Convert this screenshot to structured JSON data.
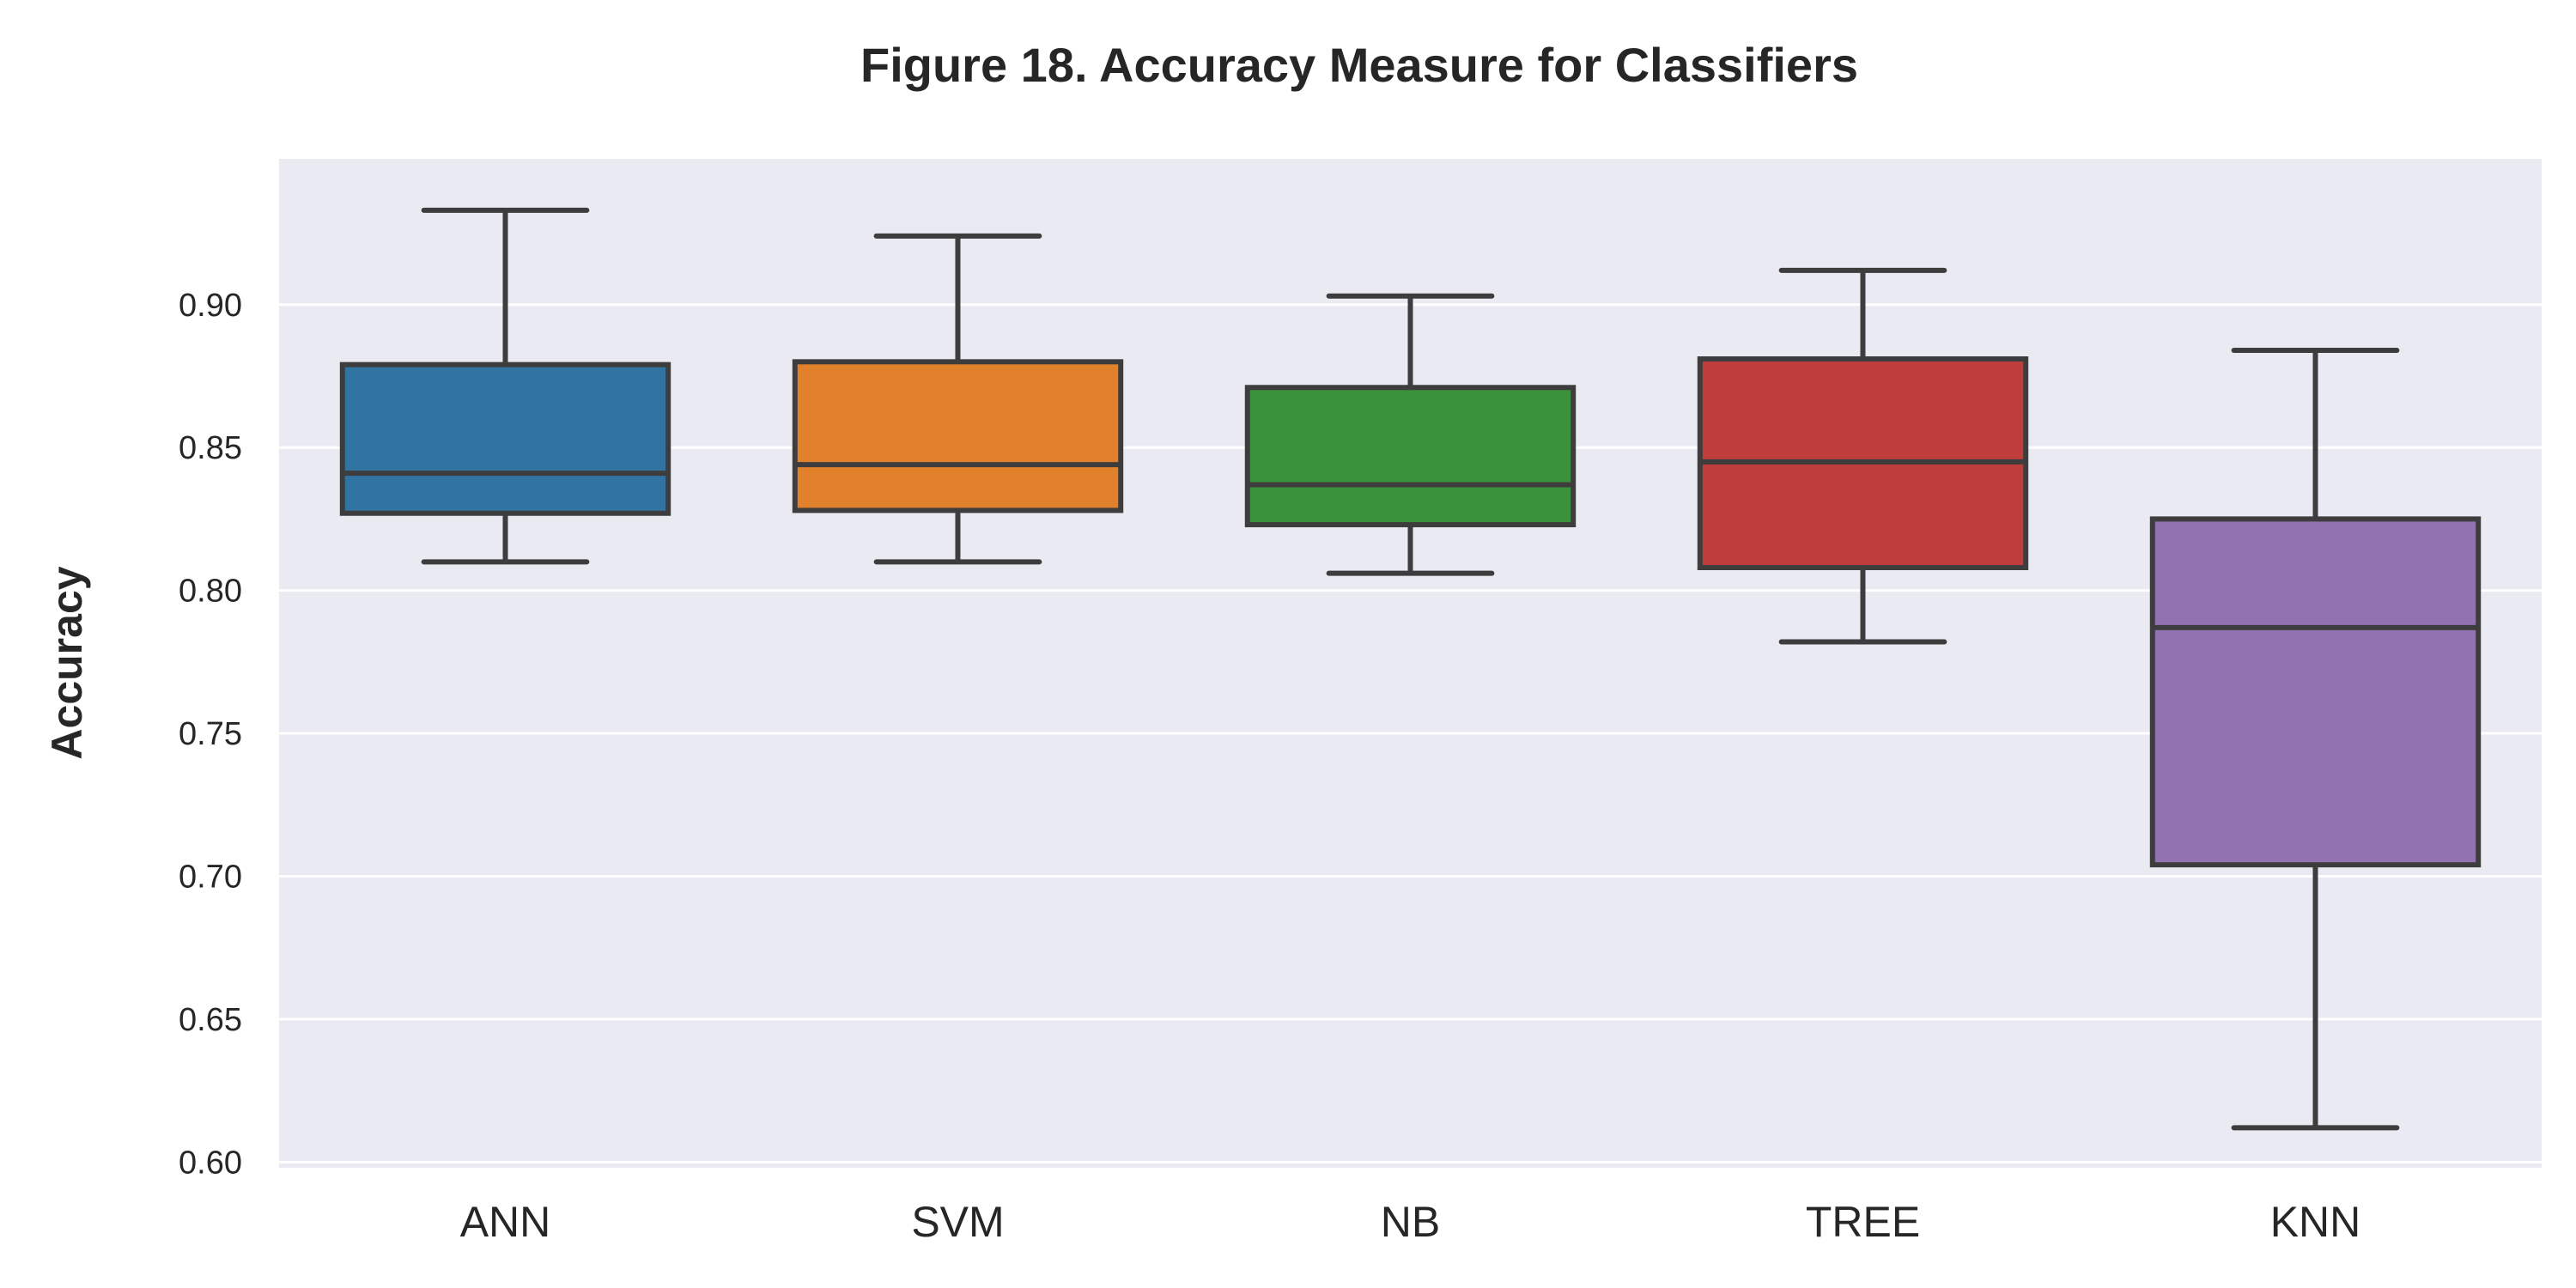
{
  "chart_data": {
    "type": "box",
    "title": "Figure 18.  Accuracy Measure for Classifiers",
    "xlabel": "",
    "ylabel": "Accuracy",
    "ylim": [
      0.598,
      0.951
    ],
    "yticks": [
      "0.60",
      "0.65",
      "0.70",
      "0.75",
      "0.80",
      "0.85",
      "0.90"
    ],
    "yticks_values": [
      0.6,
      0.65,
      0.7,
      0.75,
      0.8,
      0.85,
      0.9
    ],
    "categories": [
      "ANN",
      "SVM",
      "NB",
      "TREE",
      "KNN"
    ],
    "boxes": [
      {
        "name": "ANN",
        "color": "#3274a1",
        "whisker_low": 0.81,
        "q1": 0.827,
        "median": 0.841,
        "q3": 0.879,
        "whisker_high": 0.933
      },
      {
        "name": "SVM",
        "color": "#e1812c",
        "whisker_low": 0.81,
        "q1": 0.828,
        "median": 0.844,
        "q3": 0.88,
        "whisker_high": 0.924
      },
      {
        "name": "NB",
        "color": "#3a923a",
        "whisker_low": 0.806,
        "q1": 0.823,
        "median": 0.837,
        "q3": 0.871,
        "whisker_high": 0.903
      },
      {
        "name": "TREE",
        "color": "#c03d3e",
        "whisker_low": 0.782,
        "q1": 0.808,
        "median": 0.845,
        "q3": 0.881,
        "whisker_high": 0.912
      },
      {
        "name": "KNN",
        "color": "#9372b2",
        "whisker_low": 0.612,
        "q1": 0.704,
        "median": 0.787,
        "q3": 0.825,
        "whisker_high": 0.884
      }
    ],
    "background": "#eaeaf2",
    "grid": true,
    "legend": "none"
  }
}
